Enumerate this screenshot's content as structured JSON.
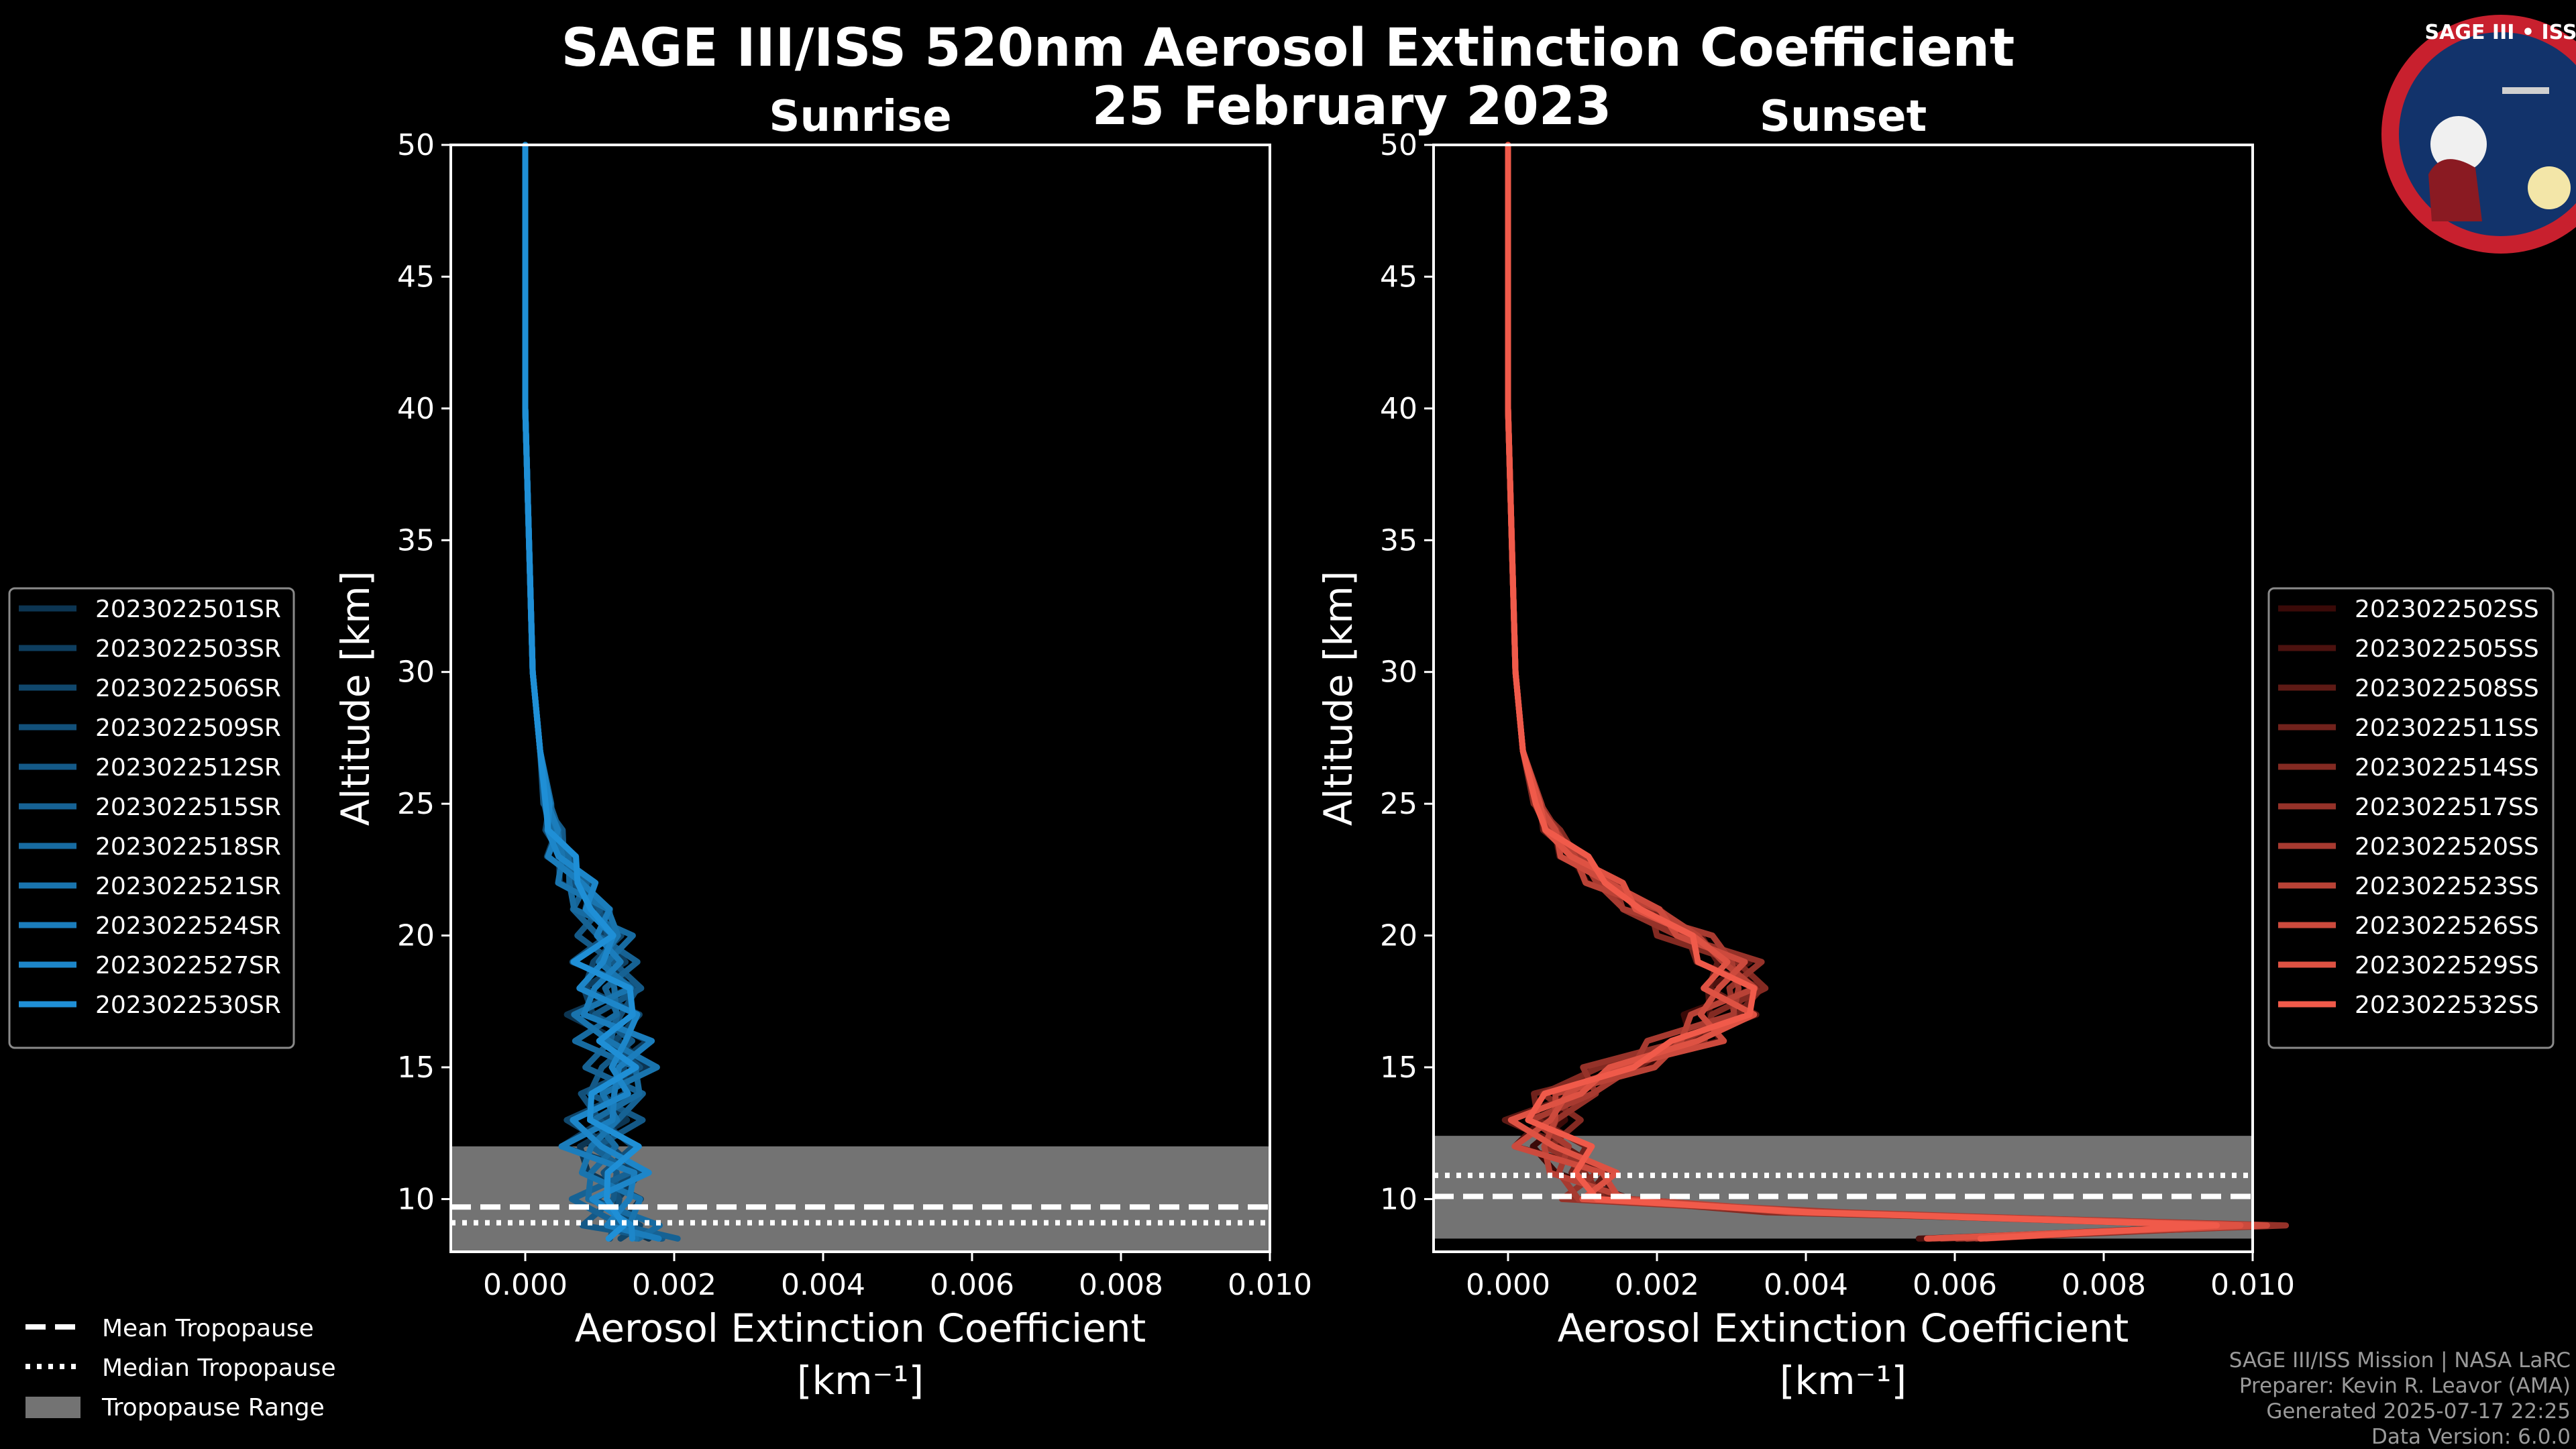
{
  "title_line1": "SAGE III/ISS 520nm Aerosol Extinction Coefficient",
  "title_line2": "25 February 2023",
  "logo": {
    "text": "SAGE III • ISS"
  },
  "colors": {
    "sunrise": "#1f8fd6",
    "sunset": "#f05a4a",
    "tropo_range": "#737373"
  },
  "chart_data": [
    {
      "type": "line",
      "subtitle": "Sunrise",
      "xlabel": "Aerosol Extinction Coefficient",
      "xunit": "[km⁻¹]",
      "ylabel": "Altitude [km]",
      "xlim": [
        -0.001,
        0.01
      ],
      "ylim": [
        8,
        50
      ],
      "xticks": [
        "0.000",
        "0.002",
        "0.004",
        "0.006",
        "0.008",
        "0.010"
      ],
      "xtick_values": [
        0,
        0.002,
        0.004,
        0.006,
        0.008,
        0.01
      ],
      "yticks": [
        10,
        15,
        20,
        25,
        30,
        35,
        40,
        45,
        50
      ],
      "tropopause": {
        "mean": 9.7,
        "median": 9.1,
        "range": [
          8.0,
          12.0
        ]
      },
      "series_names": [
        "2023022501SR",
        "2023022503SR",
        "2023022506SR",
        "2023022509SR",
        "2023022512SR",
        "2023022515SR",
        "2023022518SR",
        "2023022521SR",
        "2023022524SR",
        "2023022527SR",
        "2023022530SR"
      ],
      "profile": {
        "alt": [
          50,
          40,
          30,
          27,
          25,
          24,
          23,
          22,
          21,
          20,
          19,
          18,
          17,
          16,
          15,
          14,
          13,
          12,
          11,
          10,
          9,
          8.5
        ],
        "ext": [
          0.0,
          0.0,
          0.0001,
          0.0002,
          0.0003,
          0.0004,
          0.0005,
          0.0007,
          0.0009,
          0.0011,
          0.0011,
          0.0012,
          0.0011,
          0.0012,
          0.0013,
          0.0012,
          0.0011,
          0.001,
          0.0012,
          0.0011,
          0.0013,
          0.0016
        ]
      }
    },
    {
      "type": "line",
      "subtitle": "Sunset",
      "xlabel": "Aerosol Extinction Coefficient",
      "xunit": "[km⁻¹]",
      "ylabel": "Altitude [km]",
      "xlim": [
        -0.001,
        0.01
      ],
      "ylim": [
        8,
        50
      ],
      "xticks": [
        "0.000",
        "0.002",
        "0.004",
        "0.006",
        "0.008",
        "0.010"
      ],
      "xtick_values": [
        0,
        0.002,
        0.004,
        0.006,
        0.008,
        0.01
      ],
      "yticks": [
        10,
        15,
        20,
        25,
        30,
        35,
        40,
        45,
        50
      ],
      "tropopause": {
        "mean": 10.1,
        "median": 10.9,
        "range": [
          8.5,
          12.4
        ]
      },
      "series_names": [
        "2023022502SS",
        "2023022505SS",
        "2023022508SS",
        "2023022511SS",
        "2023022514SS",
        "2023022517SS",
        "2023022520SS",
        "2023022523SS",
        "2023022526SS",
        "2023022529SS",
        "2023022532SS"
      ],
      "profile": {
        "alt": [
          50,
          40,
          30,
          27,
          25,
          24,
          23,
          22,
          21,
          20,
          19,
          18,
          17,
          16,
          15,
          14,
          13,
          12,
          11,
          10,
          9.5,
          9,
          8.5
        ],
        "ext": [
          0.0,
          0.0,
          0.0001,
          0.0002,
          0.0004,
          0.0006,
          0.0009,
          0.0013,
          0.0018,
          0.0024,
          0.003,
          0.0031,
          0.0029,
          0.0024,
          0.0015,
          0.0008,
          0.0005,
          0.0006,
          0.001,
          0.0012,
          0.004,
          0.01,
          0.006
        ]
      }
    }
  ],
  "tropo_legend": [
    "Mean Tropopause",
    "Median Tropopause",
    "Tropopause Range"
  ],
  "credits": [
    "SAGE III/ISS Mission | NASA LaRC",
    "Preparer: Kevin R. Leavor (AMA)",
    "Generated 2025-07-17 22:25",
    "Data Version: 6.0.0"
  ]
}
